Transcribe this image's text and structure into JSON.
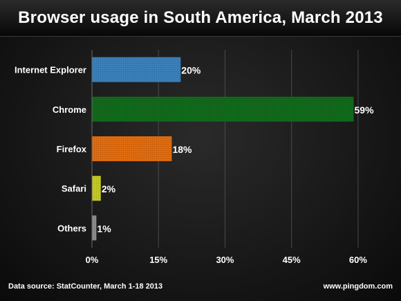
{
  "chart_data": {
    "type": "bar",
    "orientation": "horizontal",
    "title": "Browser usage in South America, March 2013",
    "categories": [
      "Internet Explorer",
      "Chrome",
      "Firefox",
      "Safari",
      "Others"
    ],
    "values": [
      20,
      59,
      18,
      2,
      1
    ],
    "value_labels": [
      "20%",
      "59%",
      "18%",
      "2%",
      "1%"
    ],
    "colors": [
      "#3b7fb8",
      "#11691b",
      "#e06b0e",
      "#c3c825",
      "#8c8c8c"
    ],
    "xlim": [
      0,
      65
    ],
    "xticks": [
      0,
      15,
      30,
      45,
      60
    ],
    "xtick_labels": [
      "0%",
      "15%",
      "30%",
      "45%",
      "60%"
    ],
    "grid": true,
    "legend": "none"
  },
  "footer": {
    "source": "Data source: StatCounter, March 1-18 2013",
    "site": "www.pingdom.com"
  }
}
